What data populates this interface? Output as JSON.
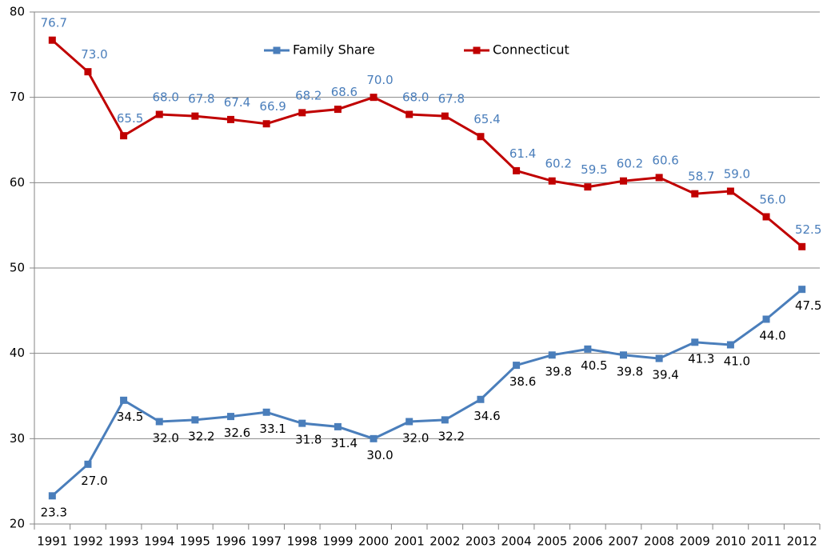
{
  "chart_data": {
    "type": "line",
    "categories": [
      "1991",
      "1992",
      "1993",
      "1994",
      "1995",
      "1996",
      "1997",
      "1998",
      "1999",
      "2000",
      "2001",
      "2002",
      "2003",
      "2004",
      "2005",
      "2006",
      "2007",
      "2008",
      "2009",
      "2010",
      "2011",
      "2012"
    ],
    "series": [
      {
        "name": "Family Share",
        "color": "#4a7ebb",
        "values": [
          23.3,
          27.0,
          34.5,
          32.0,
          32.2,
          32.6,
          33.1,
          31.8,
          31.4,
          30.0,
          32.0,
          32.2,
          34.6,
          38.6,
          39.8,
          40.5,
          39.8,
          39.4,
          41.3,
          41.0,
          44.0,
          47.5
        ],
        "value_labels": [
          "23.3",
          "27.0",
          "34.5",
          "32.0",
          "32.2",
          "32.6",
          "33.1",
          "31.8",
          "31.4",
          "30.0",
          "32.0",
          "32.2",
          "34.6",
          "38.6",
          "39.8",
          "40.5",
          "39.8",
          "39.4",
          "41.3",
          "41.0",
          "44.0",
          "47.5"
        ]
      },
      {
        "name": "Connecticut",
        "color": "#c00000",
        "values": [
          76.7,
          73.0,
          65.5,
          68.0,
          67.8,
          67.4,
          66.9,
          68.2,
          68.6,
          70.0,
          68.0,
          67.8,
          65.4,
          61.4,
          60.2,
          59.5,
          60.2,
          60.6,
          58.7,
          59.0,
          56.0,
          52.5
        ],
        "value_labels": [
          "76.7",
          "73.0",
          "65.5",
          "68.0",
          "67.8",
          "67.4",
          "66.9",
          "68.2",
          "68.6",
          "70.0",
          "68.0",
          "67.8",
          "65.4",
          "61.4",
          "60.2",
          "59.5",
          "60.2",
          "60.6",
          "58.7",
          "59.0",
          "56.0",
          "52.5"
        ]
      }
    ],
    "ylim": [
      20,
      80
    ],
    "yticks": [
      20,
      30,
      40,
      50,
      60,
      70,
      80
    ],
    "grid": true,
    "legend": "top"
  }
}
